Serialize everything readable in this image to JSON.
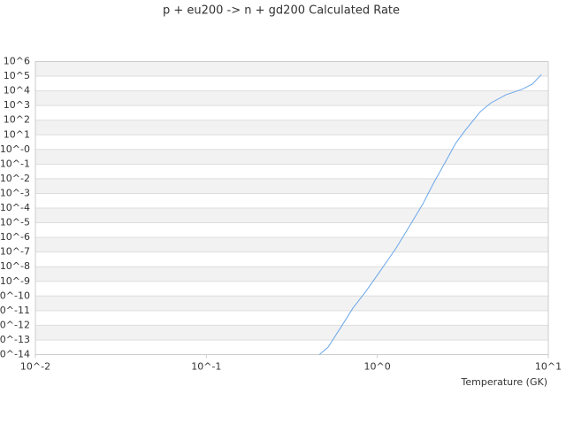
{
  "chart_data": {
    "type": "line",
    "title": "p + eu200 -> n + gd200 Calculated Rate",
    "x_label": "Temperature (GK)",
    "xscale": "log",
    "yscale": "log",
    "grid": true,
    "xlim": [
      0.01,
      10
    ],
    "ylim": [
      1e-14,
      1000000
    ],
    "xticks": [
      {
        "value": 0.01,
        "label": "10^-2"
      },
      {
        "value": 0.1,
        "label": "10^-1"
      },
      {
        "value": 1,
        "label": "10^0"
      },
      {
        "value": 10,
        "label": "10^1"
      }
    ],
    "yticks": [
      {
        "value": 1000000,
        "label": "10^6"
      },
      {
        "value": 100000,
        "label": "10^5"
      },
      {
        "value": 10000,
        "label": "10^4"
      },
      {
        "value": 1000,
        "label": "10^3"
      },
      {
        "value": 100,
        "label": "10^2"
      },
      {
        "value": 10,
        "label": "10^1"
      },
      {
        "value": 1,
        "label": "10^-0"
      },
      {
        "value": 0.1,
        "label": "10^-1"
      },
      {
        "value": 0.01,
        "label": "10^-2"
      },
      {
        "value": 0.001,
        "label": "10^-3"
      },
      {
        "value": 0.0001,
        "label": "10^-4"
      },
      {
        "value": 1e-05,
        "label": "10^-5"
      },
      {
        "value": 1e-06,
        "label": "10^-6"
      },
      {
        "value": 1e-07,
        "label": "10^-7"
      },
      {
        "value": 1e-08,
        "label": "10^-8"
      },
      {
        "value": 1e-09,
        "label": "10^-9"
      },
      {
        "value": 1e-10,
        "label": "10^-10"
      },
      {
        "value": 1e-11,
        "label": "10^-11"
      },
      {
        "value": 1e-12,
        "label": "10^-12"
      },
      {
        "value": 1e-13,
        "label": "10^-13"
      },
      {
        "value": 1e-14,
        "label": "10^-14"
      }
    ],
    "x": [
      0.458,
      0.515,
      0.61,
      0.72,
      0.85,
      1.04,
      1.29,
      1.6,
      1.85,
      2.13,
      2.55,
      2.87,
      3.24,
      4.01,
      4.62,
      5.65,
      7.0,
      8.07,
      9.1
    ],
    "series": [
      {
        "name": "p + eu200 -> n + gd200",
        "color": "#6aa6ea",
        "values": [
          1e-14,
          3.2e-14,
          6.9e-13,
          1.5e-11,
          1.8e-10,
          5.1e-09,
          1.9e-07,
          1.2e-05,
          0.0002,
          0.0049,
          0.21,
          2.6,
          18,
          390,
          1500,
          5400,
          12600,
          29000,
          130000
        ]
      }
    ]
  }
}
